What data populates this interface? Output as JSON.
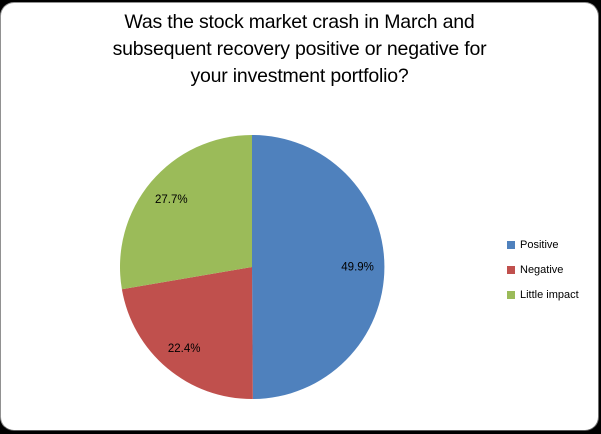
{
  "frame": {
    "surface_color": "#ffffff",
    "outside_color": "#000000",
    "border_color": "#919191"
  },
  "chart_data": {
    "type": "pie",
    "title": "Was the stock market crash in March and subsequent recovery positive or negative for your investment portfolio?",
    "title_lines": [
      "Was the stock market crash in March and",
      "subsequent recovery positive or negative for",
      "your investment portfolio?"
    ],
    "slices": [
      {
        "label": "Positive",
        "value": 49.9,
        "display_label": "49.9%",
        "color": "#4f81bd"
      },
      {
        "label": "Negative",
        "value": 22.4,
        "display_label": "22.4%",
        "color": "#c0504d"
      },
      {
        "label": "Little impact",
        "value": 27.7,
        "display_label": "27.7%",
        "color": "#9bbb59"
      }
    ],
    "start_angle": "top",
    "direction": "clockwise",
    "legend_position": "right",
    "data_label_format": "percent",
    "text_color": "#000000"
  }
}
